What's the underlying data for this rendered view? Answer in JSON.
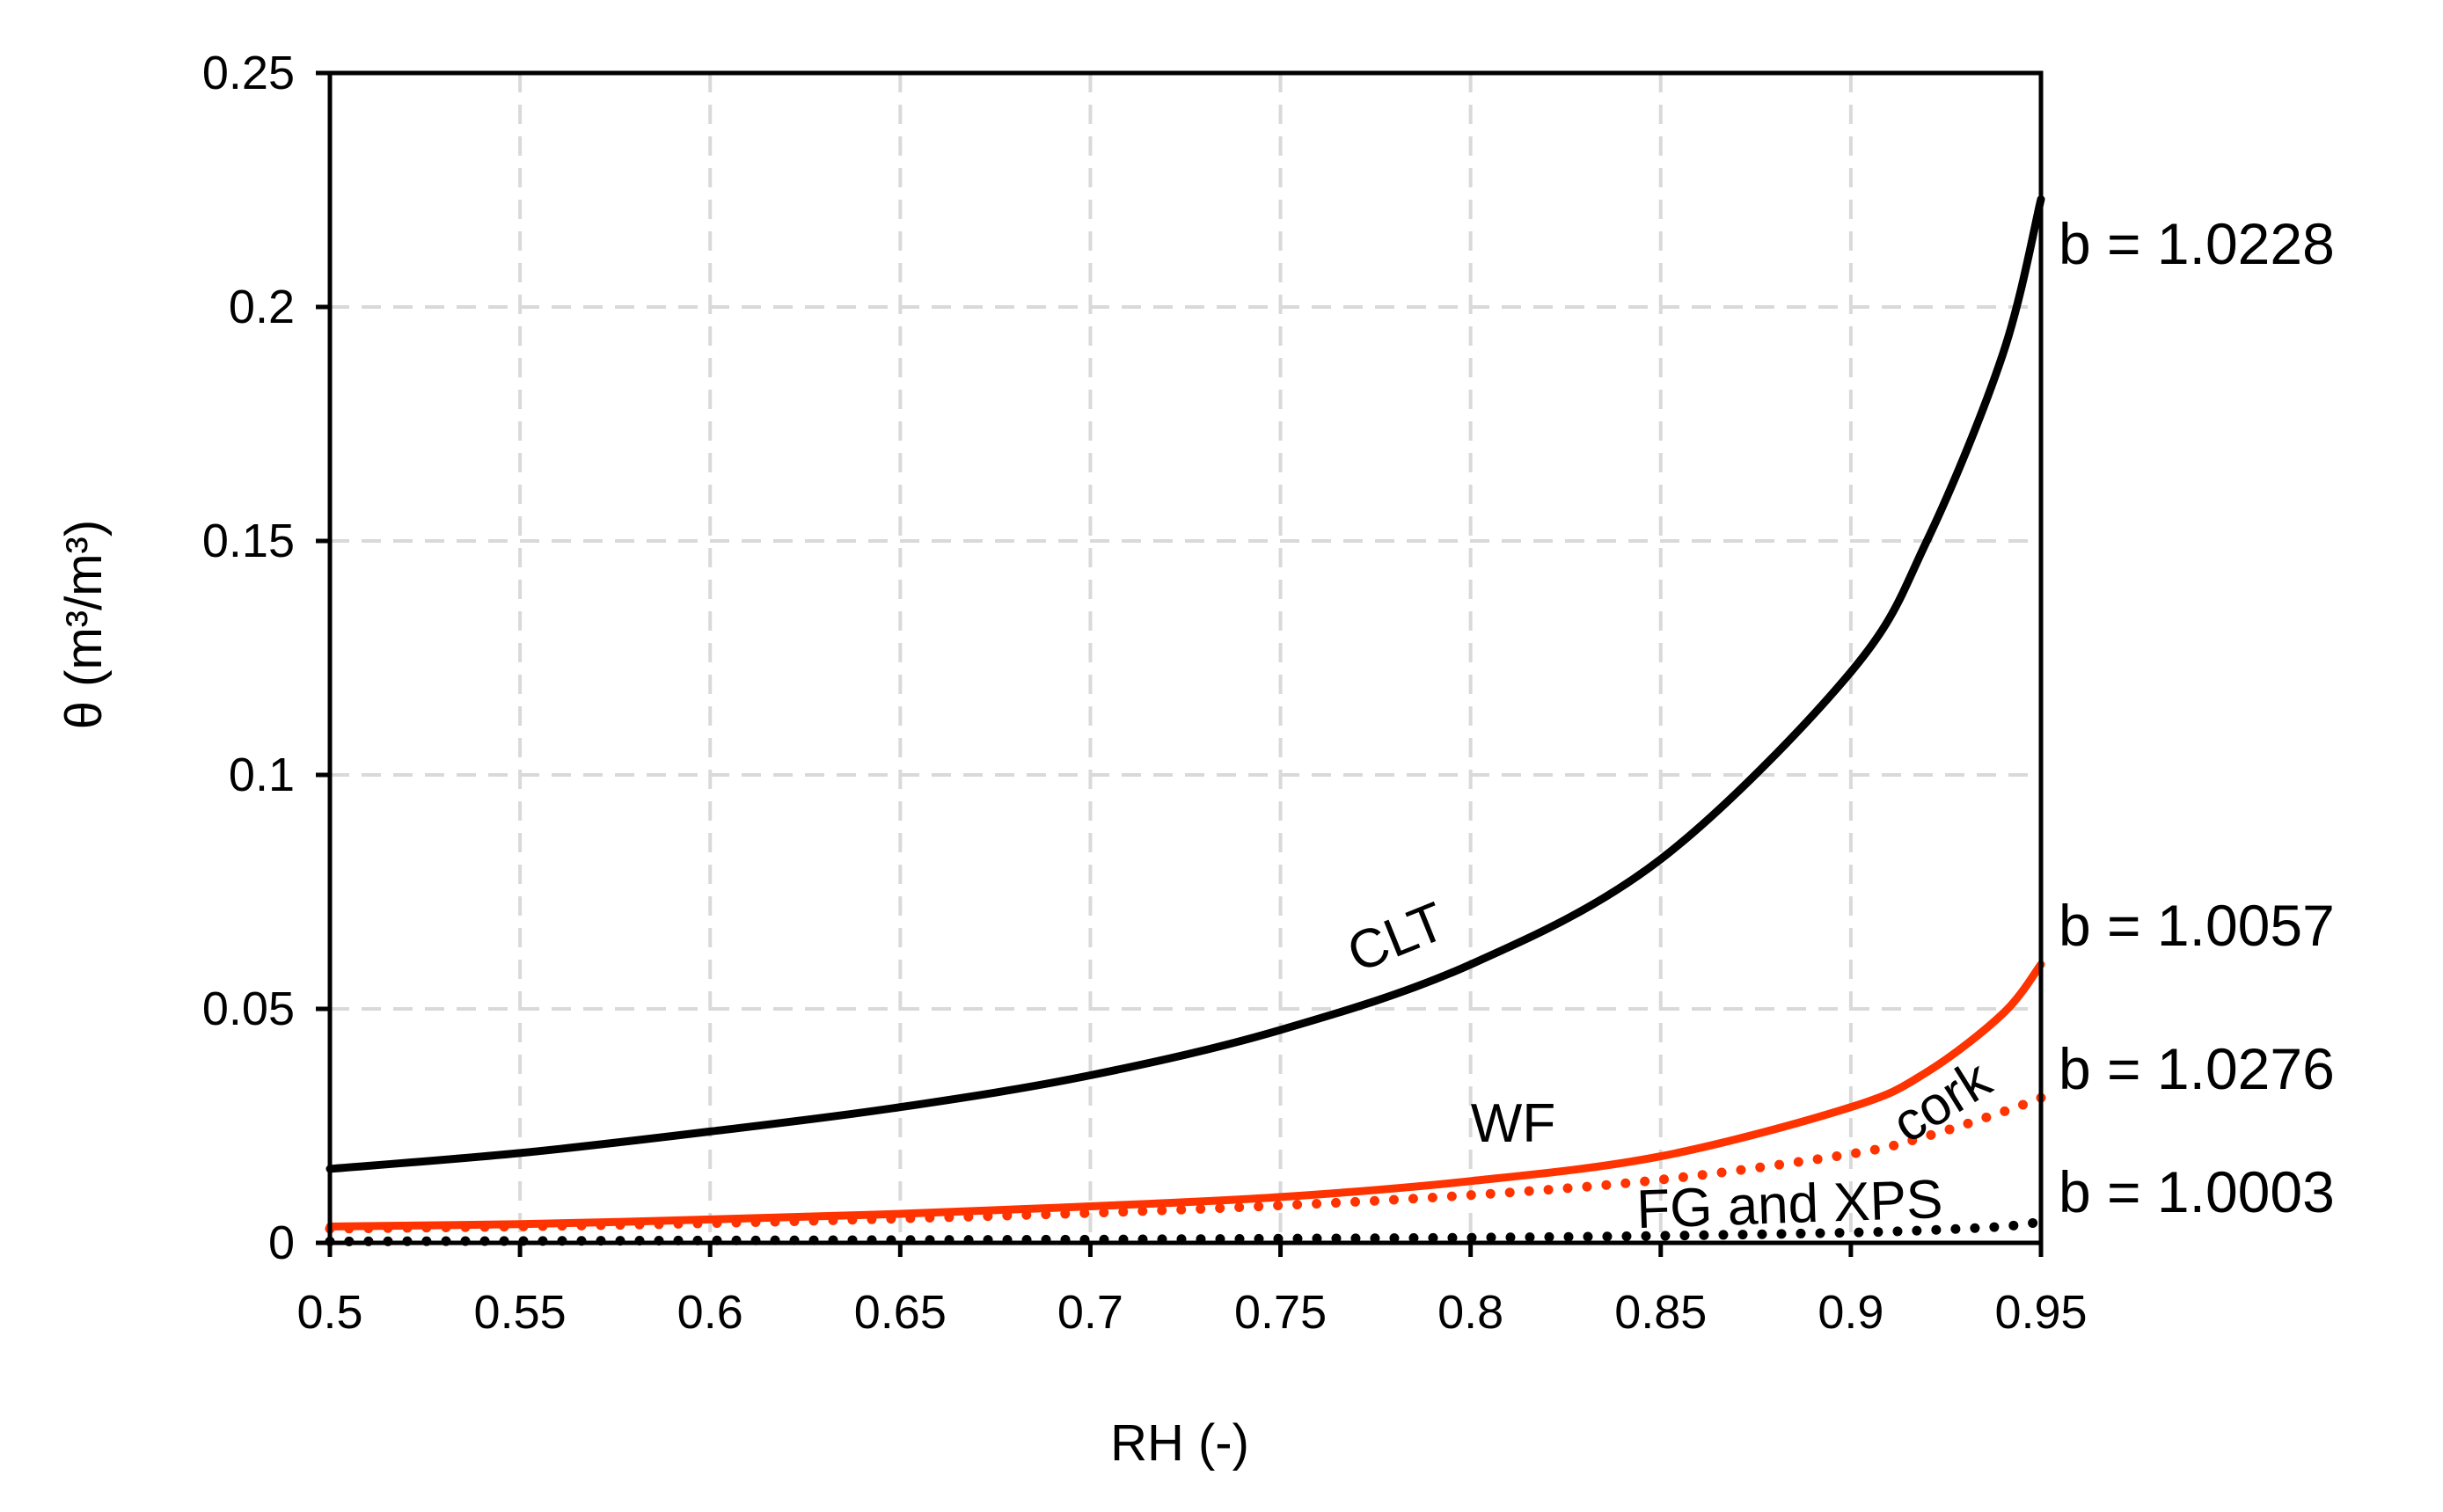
{
  "chart_data": {
    "type": "line",
    "title": "",
    "xlabel": "RH (-)",
    "ylabel": "θ (m³/m³)",
    "xlim": [
      0.5,
      0.95
    ],
    "ylim": [
      0,
      0.25
    ],
    "x_ticks": [
      "0.5",
      "0.55",
      "0.6",
      "0.65",
      "0.7",
      "0.75",
      "0.8",
      "0.85",
      "0.9",
      "0.95"
    ],
    "y_ticks": [
      "0",
      "0.05",
      "0.1",
      "0.15",
      "0.2",
      "0.25"
    ],
    "grid": true,
    "legend": "none (inline labels)",
    "series": [
      {
        "name": "CLT",
        "style": "solid",
        "color": "#000000",
        "annotation": "b = 1.0228",
        "x": [
          0.5,
          0.55,
          0.6,
          0.65,
          0.7,
          0.75,
          0.8,
          0.85,
          0.9,
          0.92,
          0.94,
          0.95
        ],
        "values": [
          0.0158,
          0.0192,
          0.0238,
          0.029,
          0.0358,
          0.0455,
          0.0595,
          0.082,
          0.122,
          0.15,
          0.19,
          0.223
        ]
      },
      {
        "name": "WF",
        "style": "solid",
        "color": "#ff3300",
        "annotation": "b = 1.0057",
        "x": [
          0.5,
          0.55,
          0.6,
          0.65,
          0.7,
          0.75,
          0.8,
          0.85,
          0.9,
          0.92,
          0.94,
          0.95
        ],
        "values": [
          0.0035,
          0.004,
          0.005,
          0.0062,
          0.0078,
          0.0098,
          0.0132,
          0.0185,
          0.029,
          0.0365,
          0.049,
          0.0595
        ]
      },
      {
        "name": "cork",
        "style": "dotted",
        "color": "#ff3300",
        "annotation": "b = 1.0276",
        "x": [
          0.5,
          0.55,
          0.6,
          0.65,
          0.7,
          0.75,
          0.8,
          0.85,
          0.9,
          0.92,
          0.94,
          0.95
        ],
        "values": [
          0.003,
          0.0035,
          0.0042,
          0.0052,
          0.0064,
          0.008,
          0.0102,
          0.0135,
          0.019,
          0.0228,
          0.028,
          0.031
        ]
      },
      {
        "name": "FG and XPS",
        "style": "dotted",
        "color": "#000000",
        "annotation": "b = 1.0003",
        "x": [
          0.5,
          0.55,
          0.6,
          0.65,
          0.7,
          0.75,
          0.8,
          0.85,
          0.9,
          0.92,
          0.94,
          0.95
        ],
        "values": [
          0.0003,
          0.0004,
          0.0005,
          0.0006,
          0.0007,
          0.0009,
          0.0011,
          0.0015,
          0.0022,
          0.0027,
          0.0035,
          0.0045
        ]
      }
    ]
  }
}
